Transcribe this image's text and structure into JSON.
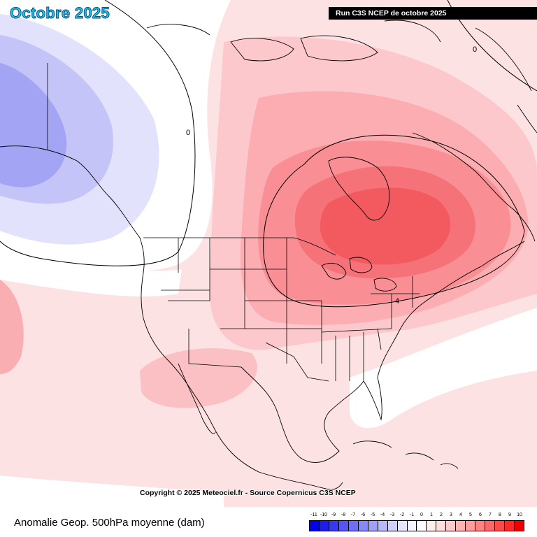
{
  "header": {
    "title": "Octobre 2025",
    "run_label": "Run C3S NCEP de octobre 2025"
  },
  "map": {
    "copyright": "Copyright © 2025 Meteociel.fr - Source Copernicus C3S NCEP",
    "contour_labels": [
      "0",
      "0",
      "4"
    ]
  },
  "legend": {
    "title": "Anomalie Geop. 500hPa moyenne (dam)",
    "scale_values": [
      "-11",
      "-10",
      "-9",
      "-8",
      "-7",
      "-6",
      "-5",
      "-4",
      "-3",
      "-2",
      "-1",
      "0",
      "1",
      "2",
      "3",
      "4",
      "5",
      "6",
      "7",
      "8",
      "9",
      "10"
    ],
    "scale_colors": [
      "#0000ee",
      "#1c1cf0",
      "#3838f2",
      "#5555f4",
      "#6e6ef6",
      "#8888f8",
      "#a0a0fa",
      "#b8b8fb",
      "#d0d0fc",
      "#e6e6fd",
      "#f4f4fe",
      "#ffffff",
      "#fff0f0",
      "#ffdede",
      "#ffcaca",
      "#ffb4b4",
      "#ff9c9c",
      "#ff8282",
      "#ff6666",
      "#ff4848",
      "#ff2828",
      "#ee0000"
    ]
  }
}
